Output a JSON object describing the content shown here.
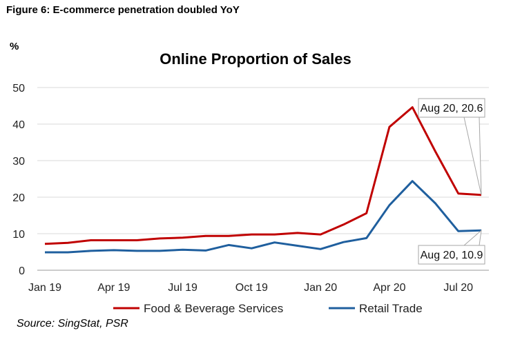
{
  "figure_title": "Figure 6: E-commerce penetration doubled YoY",
  "source": "Source: SingStat, PSR",
  "chart_data": {
    "type": "line",
    "title": "Online Proportion of Sales",
    "ylabel": "%",
    "xlabel": "",
    "ylim": [
      0,
      50
    ],
    "yticks": [
      0,
      10,
      20,
      30,
      40,
      50
    ],
    "grid": true,
    "legend": "bottom",
    "x": [
      "Jan 19",
      "Feb 19",
      "Mar 19",
      "Apr 19",
      "May 19",
      "Jun 19",
      "Jul 19",
      "Aug 19",
      "Sep 19",
      "Oct 19",
      "Nov 19",
      "Dec 19",
      "Jan 20",
      "Feb 20",
      "Mar 20",
      "Apr 20",
      "May 20",
      "Jun 20",
      "Jul 20",
      "Aug 20"
    ],
    "xtick_labels": [
      "Jan 19",
      "Apr 19",
      "Jul 19",
      "Oct 19",
      "Jan 20",
      "Apr 20",
      "Jul 20"
    ],
    "xtick_index": [
      0,
      3,
      6,
      9,
      12,
      15,
      18
    ],
    "series": [
      {
        "name": "Food & Beverage Services",
        "color": "#C00000",
        "values": [
          7.2,
          7.5,
          8.2,
          8.2,
          8.2,
          8.7,
          8.9,
          9.4,
          9.4,
          9.8,
          9.8,
          10.2,
          9.8,
          12.5,
          15.6,
          39.2,
          44.6,
          32.5,
          21.0,
          20.6
        ]
      },
      {
        "name": "Retail Trade",
        "color": "#1F5F9E",
        "values": [
          4.9,
          4.9,
          5.3,
          5.5,
          5.3,
          5.3,
          5.6,
          5.4,
          6.9,
          6.0,
          7.6,
          6.7,
          5.8,
          7.7,
          8.8,
          17.8,
          24.4,
          18.3,
          10.7,
          10.9
        ]
      }
    ],
    "annotations": [
      {
        "label": "Aug 20, 20.6",
        "series": 0,
        "index": 19
      },
      {
        "label": "Aug 20, 10.9",
        "series": 1,
        "index": 19
      }
    ]
  }
}
